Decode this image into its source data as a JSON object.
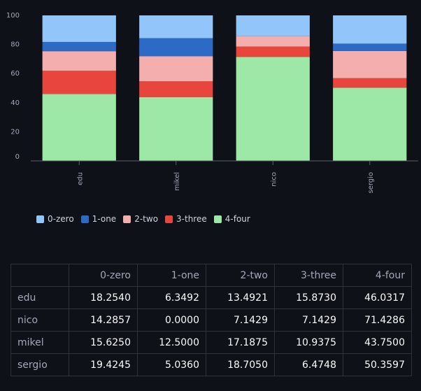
{
  "chart_data": {
    "type": "bar",
    "stacked": true,
    "categories": [
      "edu",
      "mikel",
      "nico",
      "sergio"
    ],
    "series": [
      {
        "name": "0-zero",
        "color": "#92c5f9",
        "values": [
          18.254,
          15.625,
          14.2857,
          19.4245
        ]
      },
      {
        "name": "1-one",
        "color": "#2d6ac6",
        "values": [
          6.3492,
          12.5,
          0.0,
          5.036
        ]
      },
      {
        "name": "2-two",
        "color": "#f4aeae",
        "values": [
          13.4921,
          17.1875,
          7.1429,
          18.705
        ]
      },
      {
        "name": "3-three",
        "color": "#e8453c",
        "values": [
          15.873,
          10.9375,
          7.1429,
          6.4748
        ]
      },
      {
        "name": "4-four",
        "color": "#9de8a6",
        "values": [
          46.0317,
          43.75,
          71.4286,
          50.3597
        ]
      }
    ],
    "ylim": [
      0,
      100
    ],
    "yticks": [
      "0",
      "20",
      "40",
      "60",
      "80",
      "100"
    ],
    "legend_position": "bottom"
  },
  "table": {
    "columns": [
      "0-zero",
      "1-one",
      "2-two",
      "3-three",
      "4-four"
    ],
    "rows": [
      {
        "label": "edu",
        "values": [
          "18.2540",
          "6.3492",
          "13.4921",
          "15.8730",
          "46.0317"
        ]
      },
      {
        "label": "nico",
        "values": [
          "14.2857",
          "0.0000",
          "7.1429",
          "7.1429",
          "71.4286"
        ]
      },
      {
        "label": "mikel",
        "values": [
          "15.6250",
          "12.5000",
          "17.1875",
          "10.9375",
          "43.7500"
        ]
      },
      {
        "label": "sergio",
        "values": [
          "19.4245",
          "5.0360",
          "18.7050",
          "6.4748",
          "50.3597"
        ]
      }
    ]
  }
}
